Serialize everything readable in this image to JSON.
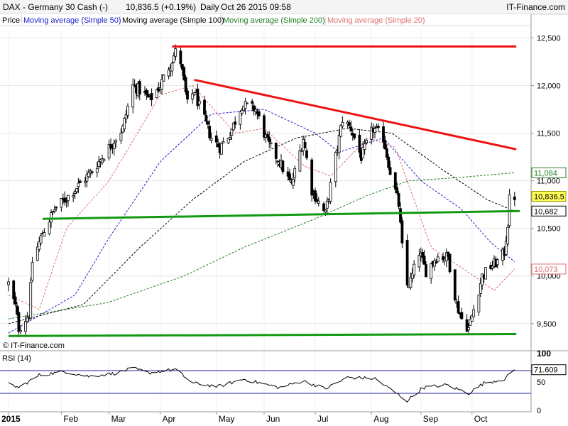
{
  "header": {
    "title": "DAX - Germany 30 Cash (-)",
    "last": "10,836.5 (+0.19%)",
    "period": "Daily",
    "datetime": "Oct 26 2015 09:58",
    "brand": "IT-Finance.com",
    "watermark": "© IT-Finance.com"
  },
  "legend": [
    {
      "label": "Price",
      "color": "#000000"
    },
    {
      "label": "Moving average (Simple 50)",
      "color": "#2020d0"
    },
    {
      "label": "Moving average (Simple 100)",
      "color": "#000000"
    },
    {
      "label": "Moving average (Simple 200)",
      "color": "#208020"
    },
    {
      "label": "Moving average (Simple 20)",
      "color": "#e07070"
    }
  ],
  "rsi_panel": {
    "label": "RSI (14)"
  },
  "colors": {
    "candle_up": "#ffffff",
    "candle_down": "#000000",
    "wick": "#000000",
    "resistance": "#ee1111",
    "support": "#119911",
    "ma20": "#e07070",
    "ma50": "#2020d0",
    "ma100": "#000000",
    "ma200": "#208020",
    "rsi_line": "#000000",
    "rsi_level": "#2020a0",
    "grid": "#e6e6e6"
  },
  "chart_data": {
    "type": "candlestick",
    "instrument": "DAX - Germany 30 Cash",
    "price_axis": {
      "ticks": [
        9500,
        10000,
        10500,
        11000,
        11500,
        12000,
        12500
      ],
      "tick_labels": [
        "9,500",
        "10,000",
        "10,500",
        "11,000",
        "11,500",
        "12,000",
        "12,500"
      ],
      "range": [
        9230,
        12600
      ]
    },
    "time_axis": {
      "start": "2015-01-02",
      "end": "2015-10-26",
      "labels": [
        {
          "text": "2015",
          "date": "2015-01-02"
        },
        {
          "text": "Feb",
          "date": "2015-02-02"
        },
        {
          "text": "Mar",
          "date": "2015-03-02"
        },
        {
          "text": "Apr",
          "date": "2015-04-01"
        },
        {
          "text": "May",
          "date": "2015-05-04"
        },
        {
          "text": "Jun",
          "date": "2015-06-01"
        },
        {
          "text": "Jul",
          "date": "2015-07-01"
        },
        {
          "text": "Aug",
          "date": "2015-08-03"
        },
        {
          "text": "Sep",
          "date": "2015-09-01"
        },
        {
          "text": "Oct",
          "date": "2015-10-01"
        }
      ]
    },
    "price_keypoints": [
      {
        "date": "2015-01-02",
        "close": 9920
      },
      {
        "date": "2015-01-06",
        "close": 9680
      },
      {
        "date": "2015-01-08",
        "close": 9450
      },
      {
        "date": "2015-01-14",
        "close": 9600
      },
      {
        "date": "2015-01-16",
        "close": 10150
      },
      {
        "date": "2015-01-22",
        "close": 10450
      },
      {
        "date": "2015-01-29",
        "close": 10700
      },
      {
        "date": "2015-02-04",
        "close": 10800
      },
      {
        "date": "2015-02-12",
        "close": 10950
      },
      {
        "date": "2015-02-20",
        "close": 11100
      },
      {
        "date": "2015-03-02",
        "close": 11350
      },
      {
        "date": "2015-03-10",
        "close": 11550
      },
      {
        "date": "2015-03-16",
        "close": 12000
      },
      {
        "date": "2015-03-20",
        "close": 11950
      },
      {
        "date": "2015-03-26",
        "close": 11850
      },
      {
        "date": "2015-04-01",
        "close": 12000
      },
      {
        "date": "2015-04-10",
        "close": 12350
      },
      {
        "date": "2015-04-13",
        "close": 12250
      },
      {
        "date": "2015-04-17",
        "close": 11800
      },
      {
        "date": "2015-04-21",
        "close": 11950
      },
      {
        "date": "2015-04-24",
        "close": 11780
      },
      {
        "date": "2015-05-01",
        "close": 11450
      },
      {
        "date": "2015-05-06",
        "close": 11350
      },
      {
        "date": "2015-05-12",
        "close": 11500
      },
      {
        "date": "2015-05-19",
        "close": 11800
      },
      {
        "date": "2015-05-27",
        "close": 11750
      },
      {
        "date": "2015-06-03",
        "close": 11400
      },
      {
        "date": "2015-06-10",
        "close": 11200
      },
      {
        "date": "2015-06-17",
        "close": 10950
      },
      {
        "date": "2015-06-24",
        "close": 11450
      },
      {
        "date": "2015-06-29",
        "close": 10900
      },
      {
        "date": "2015-07-07",
        "close": 10650
      },
      {
        "date": "2015-07-10",
        "close": 10950
      },
      {
        "date": "2015-07-17",
        "close": 11650
      },
      {
        "date": "2015-07-22",
        "close": 11550
      },
      {
        "date": "2015-07-28",
        "close": 11250
      },
      {
        "date": "2015-08-04",
        "close": 11550
      },
      {
        "date": "2015-08-10",
        "close": 11450
      },
      {
        "date": "2015-08-14",
        "close": 11100
      },
      {
        "date": "2015-08-19",
        "close": 10750
      },
      {
        "date": "2015-08-21",
        "close": 10300
      },
      {
        "date": "2015-08-24",
        "close": 9900
      },
      {
        "date": "2015-08-26",
        "close": 9950
      },
      {
        "date": "2015-08-31",
        "close": 10250
      },
      {
        "date": "2015-09-04",
        "close": 10050
      },
      {
        "date": "2015-09-10",
        "close": 10200
      },
      {
        "date": "2015-09-17",
        "close": 10200
      },
      {
        "date": "2015-09-22",
        "close": 9700
      },
      {
        "date": "2015-09-25",
        "close": 9550
      },
      {
        "date": "2015-09-29",
        "close": 9450
      },
      {
        "date": "2015-10-02",
        "close": 9650
      },
      {
        "date": "2015-10-07",
        "close": 10000
      },
      {
        "date": "2015-10-12",
        "close": 10100
      },
      {
        "date": "2015-10-16",
        "close": 10150
      },
      {
        "date": "2015-10-20",
        "close": 10250
      },
      {
        "date": "2015-10-22",
        "close": 10550
      },
      {
        "date": "2015-10-23",
        "close": 10800
      },
      {
        "date": "2015-10-26",
        "close": 10836.5
      }
    ],
    "ma20_points": [
      {
        "date": "2015-01-02",
        "value": 9800
      },
      {
        "date": "2015-01-20",
        "value": 9650
      },
      {
        "date": "2015-02-05",
        "value": 10500
      },
      {
        "date": "2015-03-02",
        "value": 11000
      },
      {
        "date": "2015-04-01",
        "value": 11900
      },
      {
        "date": "2015-04-20",
        "value": 12000
      },
      {
        "date": "2015-05-15",
        "value": 11500
      },
      {
        "date": "2015-06-01",
        "value": 11550
      },
      {
        "date": "2015-06-25",
        "value": 11150
      },
      {
        "date": "2015-07-10",
        "value": 11050
      },
      {
        "date": "2015-08-01",
        "value": 11450
      },
      {
        "date": "2015-08-17",
        "value": 11350
      },
      {
        "date": "2015-09-07",
        "value": 10300
      },
      {
        "date": "2015-09-28",
        "value": 10050
      },
      {
        "date": "2015-10-14",
        "value": 9850
      },
      {
        "date": "2015-10-26",
        "value": 10073
      }
    ],
    "ma50_points": [
      {
        "date": "2015-01-02",
        "value": 9400
      },
      {
        "date": "2015-02-10",
        "value": 9800
      },
      {
        "date": "2015-03-02",
        "value": 10400
      },
      {
        "date": "2015-04-01",
        "value": 11200
      },
      {
        "date": "2015-05-01",
        "value": 11700
      },
      {
        "date": "2015-06-01",
        "value": 11750
      },
      {
        "date": "2015-07-01",
        "value": 11500
      },
      {
        "date": "2015-07-15",
        "value": 11300
      },
      {
        "date": "2015-08-10",
        "value": 11450
      },
      {
        "date": "2015-09-01",
        "value": 11000
      },
      {
        "date": "2015-09-25",
        "value": 10700
      },
      {
        "date": "2015-10-12",
        "value": 10350
      },
      {
        "date": "2015-10-26",
        "value": 10150
      }
    ],
    "ma100_points": [
      {
        "date": "2015-01-02",
        "value": 9500
      },
      {
        "date": "2015-02-15",
        "value": 9700
      },
      {
        "date": "2015-03-20",
        "value": 10300
      },
      {
        "date": "2015-04-20",
        "value": 10800
      },
      {
        "date": "2015-05-20",
        "value": 11200
      },
      {
        "date": "2015-06-20",
        "value": 11450
      },
      {
        "date": "2015-07-20",
        "value": 11550
      },
      {
        "date": "2015-08-15",
        "value": 11500
      },
      {
        "date": "2015-09-15",
        "value": 11100
      },
      {
        "date": "2015-10-10",
        "value": 10800
      },
      {
        "date": "2015-10-26",
        "value": 10682
      }
    ],
    "ma200_points": [
      {
        "date": "2015-01-02",
        "value": 9550
      },
      {
        "date": "2015-03-01",
        "value": 9720
      },
      {
        "date": "2015-04-15",
        "value": 10000
      },
      {
        "date": "2015-05-20",
        "value": 10300
      },
      {
        "date": "2015-07-01",
        "value": 10600
      },
      {
        "date": "2015-08-01",
        "value": 10850
      },
      {
        "date": "2015-08-25",
        "value": 11000
      },
      {
        "date": "2015-09-20",
        "value": 11030
      },
      {
        "date": "2015-10-26",
        "value": 11084
      }
    ],
    "trendlines": [
      {
        "name": "resistance-top",
        "kind": "resistance",
        "from": {
          "date": "2015-04-08",
          "price": 12410
        },
        "to": {
          "date": "2015-10-27",
          "price": 12410
        }
      },
      {
        "name": "resistance-falling",
        "kind": "resistance",
        "from": {
          "date": "2015-04-21",
          "price": 12060
        },
        "to": {
          "date": "2015-10-27",
          "price": 11330
        }
      },
      {
        "name": "support-neckline",
        "kind": "support",
        "from": {
          "date": "2015-01-22",
          "price": 10600
        },
        "to": {
          "date": "2015-10-29",
          "price": 10682
        }
      },
      {
        "name": "support-bottom",
        "kind": "support",
        "from": {
          "date": "2015-01-02",
          "price": 9370
        },
        "to": {
          "date": "2015-10-27",
          "price": 9390
        }
      }
    ],
    "price_labels": [
      {
        "text": "11,084",
        "value": 11084,
        "style": "ma200"
      },
      {
        "text": "10,836.5",
        "value": 10836.5,
        "style": "last"
      },
      {
        "text": "10,682",
        "value": 10682,
        "style": "ma100"
      },
      {
        "text": "10,073",
        "value": 10073,
        "style": "ma20"
      }
    ],
    "rsi": {
      "period": 14,
      "ticks": [
        0,
        50,
        100
      ],
      "range": [
        0,
        100
      ],
      "levels": [
        70,
        30
      ],
      "last": 71.609,
      "last_label": "71.609",
      "keypoints": [
        {
          "date": "2015-01-02",
          "value": 47
        },
        {
          "date": "2015-01-08",
          "value": 40
        },
        {
          "date": "2015-01-20",
          "value": 62
        },
        {
          "date": "2015-02-04",
          "value": 68
        },
        {
          "date": "2015-02-18",
          "value": 60
        },
        {
          "date": "2015-03-05",
          "value": 65
        },
        {
          "date": "2015-03-16",
          "value": 74
        },
        {
          "date": "2015-03-25",
          "value": 66
        },
        {
          "date": "2015-04-10",
          "value": 72
        },
        {
          "date": "2015-04-20",
          "value": 48
        },
        {
          "date": "2015-05-05",
          "value": 42
        },
        {
          "date": "2015-05-20",
          "value": 55
        },
        {
          "date": "2015-06-10",
          "value": 40
        },
        {
          "date": "2015-06-24",
          "value": 52
        },
        {
          "date": "2015-07-07",
          "value": 38
        },
        {
          "date": "2015-07-20",
          "value": 58
        },
        {
          "date": "2015-08-05",
          "value": 56
        },
        {
          "date": "2015-08-20",
          "value": 25
        },
        {
          "date": "2015-08-24",
          "value": 17
        },
        {
          "date": "2015-09-02",
          "value": 40
        },
        {
          "date": "2015-09-16",
          "value": 45
        },
        {
          "date": "2015-09-29",
          "value": 30
        },
        {
          "date": "2015-10-08",
          "value": 48
        },
        {
          "date": "2015-10-20",
          "value": 55
        },
        {
          "date": "2015-10-26",
          "value": 71.609
        }
      ]
    }
  }
}
